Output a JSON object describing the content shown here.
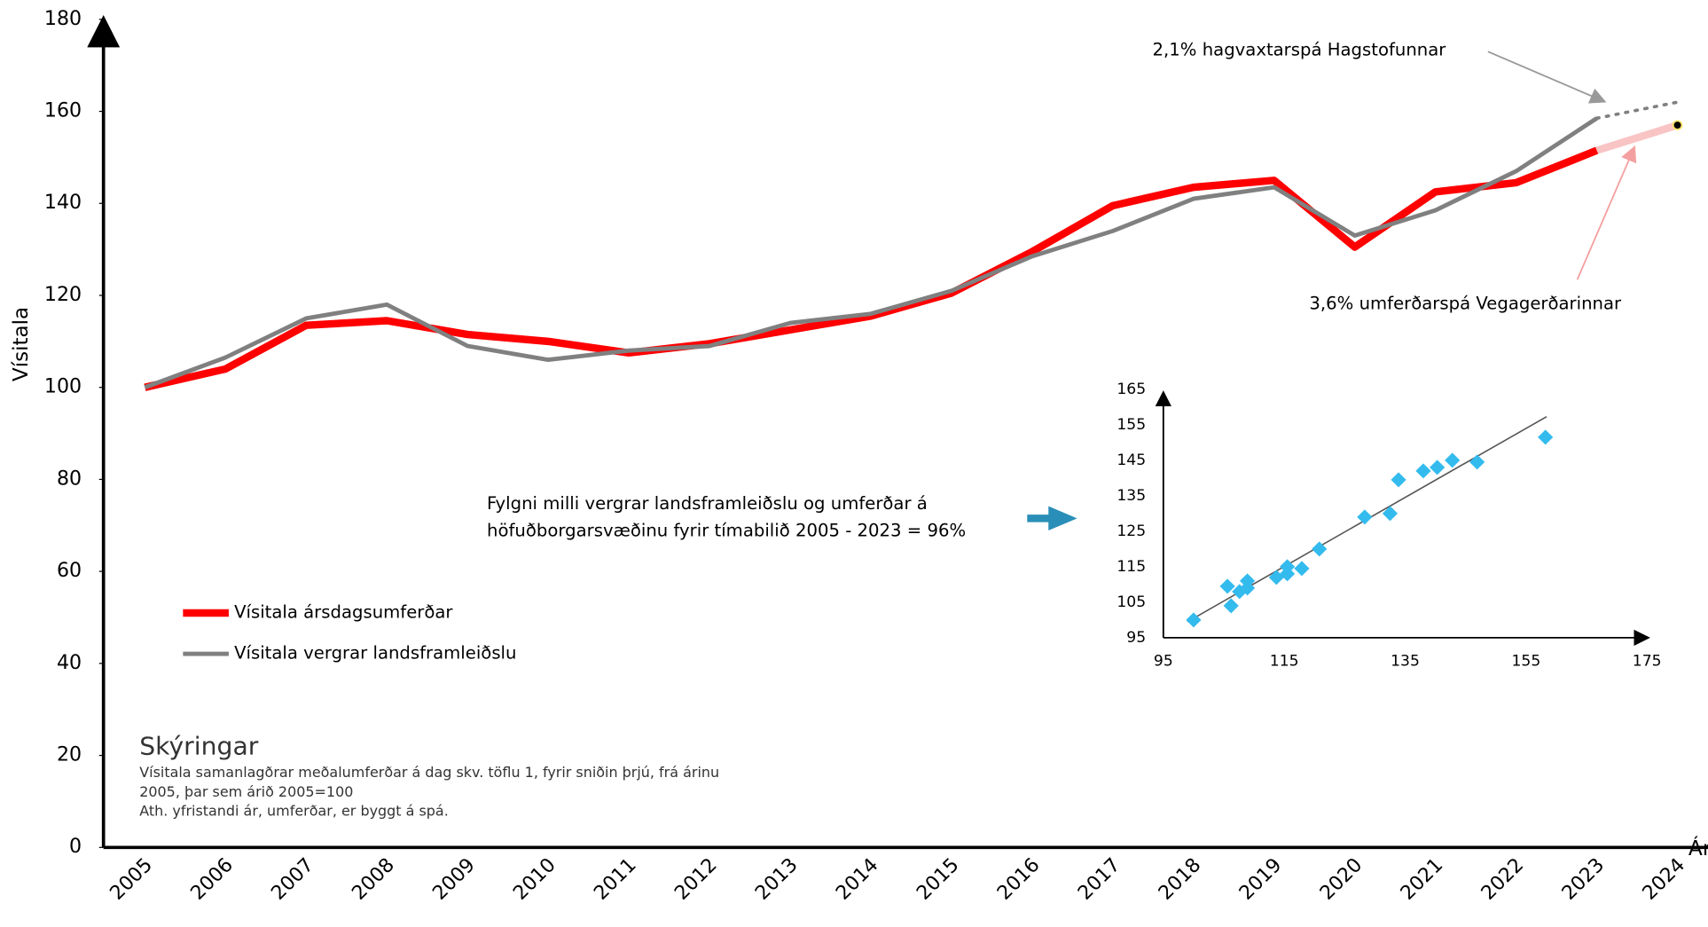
{
  "chart_data": [
    {
      "type": "line",
      "y_label": "Vísitala",
      "x_label": "Ár",
      "x": [
        2005,
        2006,
        2007,
        2008,
        2009,
        2010,
        2011,
        2012,
        2013,
        2014,
        2015,
        2016,
        2017,
        2018,
        2019,
        2020,
        2021,
        2022,
        2023,
        2024
      ],
      "series": [
        {
          "name": "Vísitala ársdagsumferðar",
          "color": "#ff0000",
          "values": [
            100,
            104,
            113.5,
            114.5,
            111.5,
            110,
            107.5,
            109.5,
            112.5,
            115.5,
            120.5,
            129.5,
            139.5,
            143.5,
            145,
            130.5,
            142.5,
            144.5,
            151.5,
            null
          ]
        },
        {
          "name": "Vísitala vergrar landsframleiðslu",
          "color": "#808080",
          "values": [
            100,
            106.5,
            115,
            118,
            109,
            106,
            108,
            109,
            114,
            116,
            121,
            128.5,
            134,
            141,
            143.5,
            133,
            138.5,
            147,
            158.5,
            null
          ]
        }
      ],
      "forecasts": [
        {
          "label": "2,1% hagvaxtarspá Hagstofunnar",
          "color": "#808080",
          "values": [
            null,
            null,
            null,
            null,
            null,
            null,
            null,
            null,
            null,
            null,
            null,
            null,
            null,
            null,
            null,
            null,
            null,
            null,
            158.5,
            162
          ]
        },
        {
          "label": "3,6% umferðarspá Vegagerðarinnar",
          "color": "#f9c4c4",
          "values": [
            null,
            null,
            null,
            null,
            null,
            null,
            null,
            null,
            null,
            null,
            null,
            null,
            null,
            null,
            null,
            null,
            null,
            null,
            151.5,
            157
          ]
        }
      ],
      "ylim": [
        0,
        180
      ],
      "yticks": [
        0,
        20,
        40,
        60,
        80,
        100,
        120,
        140,
        160,
        180
      ],
      "annotation": [
        "Fylgni milli vergrar landsframleiðslu og umferðar á",
        "höfuðborgarsvæðinu fyrir tímabilið 2005 - 2023 = 96%"
      ],
      "notes_title": "Skýringar",
      "notes": [
        "Vísitala samanlagðrar meðalumferðar á dag  skv. töflu 1, fyrir sniðin  þrjú, frá árinu",
        "2005, þar sem árið 2005=100",
        "Ath. yfristandi ár, umferðar, er byggt á spá."
      ]
    },
    {
      "type": "scatter",
      "color": "#33bbee",
      "x": [
        100,
        105.6,
        106.2,
        107.6,
        108.9,
        108.9,
        113.7,
        115.5,
        115.5,
        117.9,
        120.8,
        128.3,
        132.5,
        133.9,
        138,
        140.3,
        142.8,
        146.9,
        158.2
      ],
      "y": [
        100,
        109.5,
        104,
        108,
        111,
        109,
        112,
        115,
        113,
        114.5,
        120,
        129,
        130,
        139.5,
        142,
        143,
        145,
        144.5,
        151.5
      ],
      "trendline": {
        "x": [
          99,
          158.4
        ],
        "y": [
          99.5,
          157.3
        ]
      },
      "xlim": [
        95,
        175
      ],
      "xticks": [
        95,
        115,
        135,
        155,
        175
      ],
      "ylim": [
        95,
        165
      ],
      "yticks": [
        95,
        105,
        115,
        125,
        135,
        145,
        155,
        165
      ]
    }
  ]
}
